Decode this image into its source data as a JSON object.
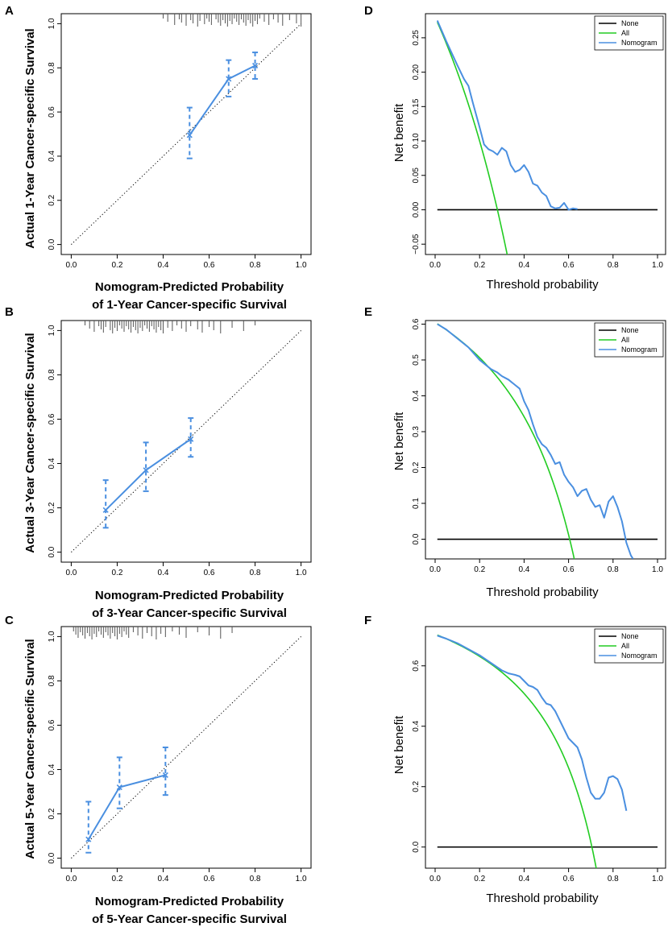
{
  "colors": {
    "none": "#000000",
    "all": "#22cc22",
    "nomogram": "#4a8fe0",
    "axis": "#000000",
    "rug": "#555555"
  },
  "chart_data": [
    {
      "panel": "A",
      "type": "line",
      "subtype": "calibration",
      "xlabel_line1": "Nomogram-Predicted Probability",
      "xlabel_line2": "of 1-Year Cancer-specific Survival",
      "ylabel": "Actual 1-Year Cancer-specific Survival",
      "xlim": [
        0,
        1
      ],
      "ylim": [
        0,
        1
      ],
      "xticks": [
        "0.0",
        "0.2",
        "0.4",
        "0.6",
        "0.8",
        "1.0"
      ],
      "yticks": [
        "0.0",
        "0.2",
        "0.4",
        "0.6",
        "0.8",
        "1.0"
      ],
      "reference_line": "y = x",
      "x": [
        0.515,
        0.685,
        0.8
      ],
      "y": [
        0.495,
        0.75,
        0.81
      ],
      "ci_lower": [
        0.39,
        0.67,
        0.75
      ],
      "ci_upper": [
        0.62,
        0.835,
        0.87
      ],
      "rug": [
        0.4,
        0.42,
        0.45,
        0.47,
        0.48,
        0.5,
        0.52,
        0.53,
        0.55,
        0.56,
        0.58,
        0.59,
        0.6,
        0.61,
        0.63,
        0.64,
        0.65,
        0.66,
        0.67,
        0.68,
        0.69,
        0.7,
        0.71,
        0.72,
        0.73,
        0.74,
        0.75,
        0.76,
        0.77,
        0.78,
        0.79,
        0.8,
        0.81,
        0.82,
        0.84,
        0.86,
        0.88,
        0.9,
        0.92,
        0.95,
        0.98,
        1.0
      ]
    },
    {
      "panel": "B",
      "type": "line",
      "subtype": "calibration",
      "xlabel_line1": "Nomogram-Predicted Probability",
      "xlabel_line2": "of 3-Year Cancer-specific Survival",
      "ylabel": "Actual 3-Year Cancer-specific Survival",
      "xlim": [
        0,
        1
      ],
      "ylim": [
        0,
        1
      ],
      "xticks": [
        "0.0",
        "0.2",
        "0.4",
        "0.6",
        "0.8",
        "1.0"
      ],
      "yticks": [
        "0.0",
        "0.2",
        "0.4",
        "0.6",
        "0.8",
        "1.0"
      ],
      "reference_line": "y = x",
      "x": [
        0.15,
        0.325,
        0.52
      ],
      "y": [
        0.19,
        0.37,
        0.51
      ],
      "ci_lower": [
        0.11,
        0.275,
        0.43
      ],
      "ci_upper": [
        0.325,
        0.495,
        0.605
      ],
      "rug": [
        0.06,
        0.08,
        0.1,
        0.12,
        0.13,
        0.14,
        0.15,
        0.17,
        0.18,
        0.19,
        0.2,
        0.21,
        0.22,
        0.23,
        0.24,
        0.25,
        0.26,
        0.27,
        0.28,
        0.29,
        0.3,
        0.31,
        0.32,
        0.33,
        0.34,
        0.35,
        0.36,
        0.37,
        0.38,
        0.39,
        0.4,
        0.42,
        0.44,
        0.46,
        0.48,
        0.5,
        0.52,
        0.55,
        0.57,
        0.6,
        0.62,
        0.65,
        0.7,
        0.75,
        0.8
      ]
    },
    {
      "panel": "C",
      "type": "line",
      "subtype": "calibration",
      "xlabel_line1": "Nomogram-Predicted Probability",
      "xlabel_line2": "of 5-Year Cancer-specific Survival",
      "ylabel": "Actual 5-Year Cancer-specific Survival",
      "xlim": [
        0,
        1
      ],
      "ylim": [
        0,
        1
      ],
      "xticks": [
        "0.0",
        "0.2",
        "0.4",
        "0.6",
        "0.8",
        "1.0"
      ],
      "yticks": [
        "0.0",
        "0.2",
        "0.4",
        "0.6",
        "0.8",
        "1.0"
      ],
      "reference_line": "y = x",
      "x": [
        0.075,
        0.21,
        0.41
      ],
      "y": [
        0.085,
        0.32,
        0.375
      ],
      "ci_lower": [
        0.025,
        0.225,
        0.285
      ],
      "ci_upper": [
        0.255,
        0.455,
        0.5
      ],
      "rug": [
        0.01,
        0.02,
        0.03,
        0.04,
        0.05,
        0.06,
        0.07,
        0.08,
        0.09,
        0.1,
        0.11,
        0.12,
        0.13,
        0.14,
        0.15,
        0.16,
        0.17,
        0.18,
        0.19,
        0.2,
        0.21,
        0.22,
        0.23,
        0.24,
        0.25,
        0.27,
        0.29,
        0.31,
        0.33,
        0.35,
        0.37,
        0.39,
        0.41,
        0.44,
        0.47,
        0.5,
        0.55,
        0.6,
        0.65,
        0.7
      ]
    },
    {
      "panel": "D",
      "type": "line",
      "subtype": "decision-curve",
      "xlabel": "Threshold probability",
      "ylabel": "Net benefit",
      "xlim": [
        0,
        1
      ],
      "ylim": [
        -0.065,
        0.285
      ],
      "xticks": [
        "0.0",
        "0.2",
        "0.4",
        "0.6",
        "0.8",
        "1.0"
      ],
      "yticks": [
        "−0.05",
        "0.00",
        "0.05",
        "0.10",
        "0.15",
        "0.20",
        "0.25"
      ],
      "ytick_values": [
        -0.05,
        0,
        0.05,
        0.1,
        0.15,
        0.2,
        0.25
      ],
      "legend": [
        "None",
        "All",
        "Nomogram"
      ],
      "legend_position": "top-right",
      "prevalence": 0.28,
      "none": {
        "x": [
          0.01,
          1.0
        ],
        "y": [
          0,
          0
        ]
      },
      "nomogram": {
        "x": [
          0.01,
          0.05,
          0.1,
          0.13,
          0.15,
          0.17,
          0.2,
          0.22,
          0.24,
          0.26,
          0.28,
          0.3,
          0.32,
          0.34,
          0.36,
          0.38,
          0.4,
          0.42,
          0.44,
          0.46,
          0.48,
          0.5,
          0.52,
          0.54,
          0.56,
          0.58,
          0.6,
          0.62,
          0.64
        ],
        "y": [
          0.275,
          0.245,
          0.21,
          0.19,
          0.18,
          0.155,
          0.12,
          0.095,
          0.088,
          0.085,
          0.08,
          0.09,
          0.085,
          0.065,
          0.055,
          0.058,
          0.065,
          0.055,
          0.038,
          0.035,
          0.025,
          0.02,
          0.005,
          0.002,
          0.003,
          0.01,
          0.0,
          0.002,
          0.001
        ]
      }
    },
    {
      "panel": "E",
      "type": "line",
      "subtype": "decision-curve",
      "xlabel": "Threshold probability",
      "ylabel": "Net benefit",
      "xlim": [
        0,
        1
      ],
      "ylim": [
        -0.055,
        0.61
      ],
      "xticks": [
        "0.0",
        "0.2",
        "0.4",
        "0.6",
        "0.8",
        "1.0"
      ],
      "yticks": [
        "0.0",
        "0.1",
        "0.2",
        "0.3",
        "0.4",
        "0.5",
        "0.6"
      ],
      "ytick_values": [
        0,
        0.1,
        0.2,
        0.3,
        0.4,
        0.5,
        0.6
      ],
      "legend": [
        "None",
        "All",
        "Nomogram"
      ],
      "legend_position": "top-right",
      "prevalence": 0.605,
      "none": {
        "x": [
          0.01,
          1.0
        ],
        "y": [
          0,
          0
        ]
      },
      "nomogram": {
        "x": [
          0.01,
          0.05,
          0.1,
          0.15,
          0.2,
          0.25,
          0.28,
          0.3,
          0.33,
          0.36,
          0.38,
          0.4,
          0.42,
          0.44,
          0.46,
          0.48,
          0.5,
          0.52,
          0.54,
          0.56,
          0.58,
          0.6,
          0.62,
          0.64,
          0.66,
          0.68,
          0.7,
          0.72,
          0.74,
          0.76,
          0.78,
          0.8,
          0.82,
          0.84,
          0.86,
          0.88,
          0.89
        ],
        "y": [
          0.6,
          0.585,
          0.56,
          0.535,
          0.5,
          0.475,
          0.465,
          0.455,
          0.445,
          0.43,
          0.42,
          0.385,
          0.36,
          0.32,
          0.285,
          0.265,
          0.255,
          0.235,
          0.21,
          0.215,
          0.18,
          0.16,
          0.145,
          0.12,
          0.135,
          0.14,
          0.11,
          0.09,
          0.095,
          0.06,
          0.105,
          0.12,
          0.09,
          0.05,
          -0.01,
          -0.045,
          -0.055
        ]
      }
    },
    {
      "panel": "F",
      "type": "line",
      "subtype": "decision-curve",
      "xlabel": "Threshold probability",
      "ylabel": "Net benefit",
      "xlim": [
        0,
        1
      ],
      "ylim": [
        -0.07,
        0.73
      ],
      "xticks": [
        "0.0",
        "0.2",
        "0.4",
        "0.6",
        "0.8",
        "1.0"
      ],
      "yticks": [
        "0.0",
        "0.2",
        "0.4",
        "0.6"
      ],
      "ytick_values": [
        0,
        0.2,
        0.4,
        0.6
      ],
      "legend": [
        "None",
        "All",
        "Nomogram"
      ],
      "legend_position": "top-right",
      "prevalence": 0.705,
      "none": {
        "x": [
          0.01,
          1.0
        ],
        "y": [
          0,
          0
        ]
      },
      "nomogram": {
        "x": [
          0.01,
          0.05,
          0.1,
          0.15,
          0.2,
          0.25,
          0.3,
          0.33,
          0.36,
          0.38,
          0.4,
          0.42,
          0.44,
          0.46,
          0.48,
          0.5,
          0.52,
          0.54,
          0.56,
          0.58,
          0.6,
          0.62,
          0.64,
          0.66,
          0.68,
          0.7,
          0.72,
          0.74,
          0.76,
          0.78,
          0.8,
          0.82,
          0.84,
          0.86
        ],
        "y": [
          0.7,
          0.69,
          0.675,
          0.655,
          0.635,
          0.61,
          0.585,
          0.575,
          0.57,
          0.565,
          0.55,
          0.535,
          0.53,
          0.52,
          0.495,
          0.475,
          0.47,
          0.45,
          0.42,
          0.39,
          0.36,
          0.345,
          0.33,
          0.29,
          0.23,
          0.18,
          0.16,
          0.16,
          0.18,
          0.23,
          0.235,
          0.225,
          0.19,
          0.12
        ]
      }
    }
  ]
}
